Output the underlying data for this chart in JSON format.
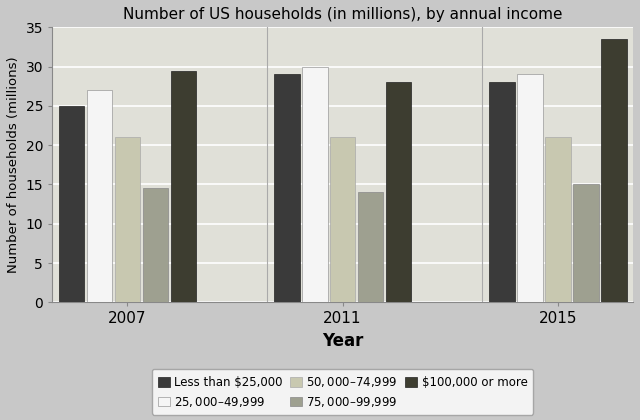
{
  "title": "Number of US households (in millions), by annual income",
  "xlabel": "Year",
  "ylabel": "Number of households (millions)",
  "years": [
    "2007",
    "2011",
    "2015"
  ],
  "categories": [
    "Less than $25,000",
    "$25,000–$49,999",
    "$50,000–$74,999",
    "$75,000–$99,999",
    "$100,000 or more"
  ],
  "values": {
    "Less than $25,000": [
      25,
      29,
      28
    ],
    "$25,000–$49,999": [
      27,
      30,
      29
    ],
    "$50,000–$74,999": [
      21,
      21,
      21
    ],
    "$75,000–$99,999": [
      14.5,
      14,
      15
    ],
    "$100,000 or more": [
      29.5,
      28,
      33.5
    ]
  },
  "colors": [
    "#3a3a3a",
    "#f5f5f5",
    "#c8c8b0",
    "#9eA090",
    "#3d3d30"
  ],
  "bar_edgecolors": [
    "#222222",
    "#999999",
    "#aaaaaa",
    "#888888",
    "#222222"
  ],
  "ylim": [
    0,
    35
  ],
  "yticks": [
    0,
    5,
    10,
    15,
    20,
    25,
    30,
    35
  ],
  "outer_background": "#c8c8c8",
  "plot_background": "#e0e0d8",
  "grid_color": "#ffffff",
  "bar_width": 0.13,
  "group_positions": [
    0.3,
    1.3,
    2.3
  ]
}
